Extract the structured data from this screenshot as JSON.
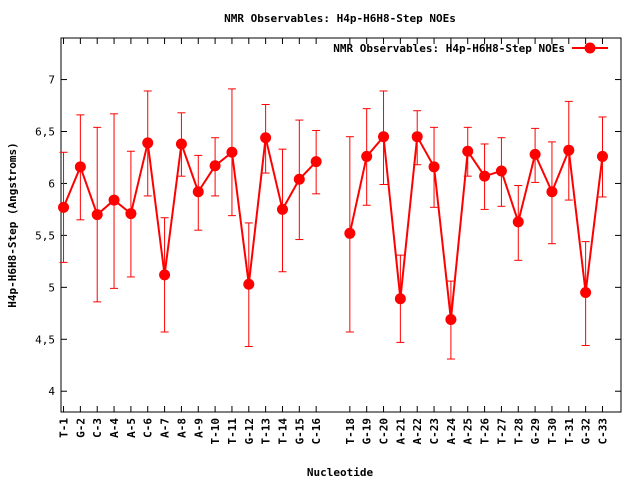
{
  "chart_data": {
    "type": "line",
    "title": "NMR Observables: H4p-H6H8-Step NOEs",
    "xlabel": "Nucleotide",
    "ylabel": "H4p-H6H8-Step (Angstroms)",
    "legend": {
      "label": "NMR Observables: H4p-H6H8-Step NOEs",
      "placement": "top-right"
    },
    "ylim": [
      3.8,
      7.4
    ],
    "yticks": [
      4,
      4.5,
      5,
      5.5,
      6,
      6.5,
      7
    ],
    "ytick_labels": [
      "4",
      "4,5",
      "5",
      "5,5",
      "6",
      "6,5",
      "7"
    ],
    "xlim": [
      0.85,
      34.1
    ],
    "grid": false,
    "color": "#ff0000",
    "points": [
      {
        "label": "T-1",
        "x": 1,
        "y": 5.77,
        "low": 5.24,
        "high": 6.3
      },
      {
        "label": "G-2",
        "x": 2,
        "y": 6.16,
        "low": 5.65,
        "high": 6.66
      },
      {
        "label": "C-3",
        "x": 3,
        "y": 5.7,
        "low": 4.86,
        "high": 6.54
      },
      {
        "label": "A-4",
        "x": 4,
        "y": 5.84,
        "low": 4.99,
        "high": 6.67
      },
      {
        "label": "A-5",
        "x": 5,
        "y": 5.71,
        "low": 5.1,
        "high": 6.31
      },
      {
        "label": "C-6",
        "x": 6,
        "y": 6.39,
        "low": 5.88,
        "high": 6.89
      },
      {
        "label": "A-7",
        "x": 7,
        "y": 5.12,
        "low": 4.57,
        "high": 5.67
      },
      {
        "label": "A-8",
        "x": 8,
        "y": 6.38,
        "low": 6.07,
        "high": 6.68
      },
      {
        "label": "A-9",
        "x": 9,
        "y": 5.92,
        "low": 5.55,
        "high": 6.27
      },
      {
        "label": "T-10",
        "x": 10,
        "y": 6.17,
        "low": 5.88,
        "high": 6.44
      },
      {
        "label": "T-11",
        "x": 11,
        "y": 6.3,
        "low": 5.69,
        "high": 6.91
      },
      {
        "label": "G-12",
        "x": 12,
        "y": 5.03,
        "low": 4.43,
        "high": 5.62
      },
      {
        "label": "T-13",
        "x": 13,
        "y": 6.44,
        "low": 6.1,
        "high": 6.76
      },
      {
        "label": "T-14",
        "x": 14,
        "y": 5.75,
        "low": 5.15,
        "high": 6.33
      },
      {
        "label": "G-15",
        "x": 15,
        "y": 6.04,
        "low": 5.46,
        "high": 6.61
      },
      {
        "label": "C-16",
        "x": 16,
        "y": 6.21,
        "low": 5.9,
        "high": 6.51
      },
      {
        "label": "T-18",
        "x": 18,
        "y": 5.52,
        "low": 4.57,
        "high": 6.45
      },
      {
        "label": "G-19",
        "x": 19,
        "y": 6.26,
        "low": 5.79,
        "high": 6.72
      },
      {
        "label": "C-20",
        "x": 20,
        "y": 6.45,
        "low": 5.99,
        "high": 6.89
      },
      {
        "label": "A-21",
        "x": 21,
        "y": 4.89,
        "low": 4.47,
        "high": 5.31
      },
      {
        "label": "A-22",
        "x": 22,
        "y": 6.45,
        "low": 6.18,
        "high": 6.7
      },
      {
        "label": "C-23",
        "x": 23,
        "y": 6.16,
        "low": 5.77,
        "high": 6.54
      },
      {
        "label": "A-24",
        "x": 24,
        "y": 4.69,
        "low": 4.31,
        "high": 5.06
      },
      {
        "label": "A-25",
        "x": 25,
        "y": 6.31,
        "low": 6.07,
        "high": 6.54
      },
      {
        "label": "T-26",
        "x": 26,
        "y": 6.07,
        "low": 5.75,
        "high": 6.38
      },
      {
        "label": "T-27",
        "x": 27,
        "y": 6.12,
        "low": 5.78,
        "high": 6.44
      },
      {
        "label": "T-28",
        "x": 28,
        "y": 5.63,
        "low": 5.26,
        "high": 5.98
      },
      {
        "label": "G-29",
        "x": 29,
        "y": 6.28,
        "low": 6.01,
        "high": 6.53
      },
      {
        "label": "T-30",
        "x": 30,
        "y": 5.92,
        "low": 5.42,
        "high": 6.4
      },
      {
        "label": "T-31",
        "x": 31,
        "y": 6.32,
        "low": 5.84,
        "high": 6.79
      },
      {
        "label": "G-32",
        "x": 32,
        "y": 4.95,
        "low": 4.44,
        "high": 5.44
      },
      {
        "label": "C-33",
        "x": 33,
        "y": 6.26,
        "low": 5.87,
        "high": 6.64
      }
    ]
  }
}
